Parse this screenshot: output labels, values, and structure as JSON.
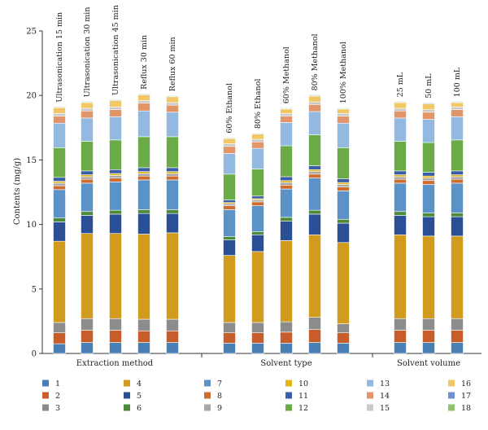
{
  "chart_data": {
    "type": "bar",
    "stacked": true,
    "ylabel": "Contents (mg/g)",
    "ylim": [
      0,
      25
    ],
    "yticks": [
      0,
      5,
      10,
      15,
      20,
      25
    ],
    "grid": false,
    "legend_position": "bottom",
    "groups": [
      {
        "name": "Extraction method",
        "categories": [
          "Ultrasonication 15 min",
          "Ultrasonication 30 min",
          "Ultrasonication 45 min",
          "Reflux 30 min",
          "Reflux 60 min"
        ]
      },
      {
        "name": "Solvent type",
        "categories": [
          "60% Ethanol",
          "80% Ethanol",
          "60% Methanol",
          "80% Methanol",
          "100% Methanol"
        ]
      },
      {
        "name": "Solvent volume",
        "categories": [
          "25 mL",
          "50 mL",
          "100 mL"
        ]
      }
    ],
    "series": [
      {
        "name": "1",
        "color": "#4a7fb5",
        "values": [
          0.75,
          0.85,
          0.85,
          0.85,
          0.85,
          0.8,
          0.8,
          0.8,
          0.85,
          0.8,
          0.85,
          0.85,
          0.85
        ]
      },
      {
        "name": "2",
        "color": "#c65d2a",
        "values": [
          0.85,
          0.95,
          0.95,
          0.9,
          0.9,
          0.8,
          0.8,
          0.85,
          1.0,
          0.8,
          0.95,
          0.95,
          0.95
        ]
      },
      {
        "name": "3",
        "color": "#8c8c8c",
        "values": [
          0.8,
          0.9,
          0.9,
          0.9,
          0.9,
          0.8,
          0.8,
          0.8,
          0.95,
          0.7,
          0.9,
          0.9,
          0.9
        ]
      },
      {
        "name": "4",
        "color": "#d19b1e",
        "values": [
          6.3,
          6.6,
          6.6,
          6.6,
          6.7,
          5.2,
          5.5,
          6.3,
          6.4,
          6.3,
          6.5,
          6.4,
          6.4
        ]
      },
      {
        "name": "5",
        "color": "#2b4f94",
        "values": [
          1.5,
          1.4,
          1.5,
          1.6,
          1.5,
          1.2,
          1.3,
          1.5,
          1.6,
          1.5,
          1.5,
          1.5,
          1.5
        ]
      },
      {
        "name": "6",
        "color": "#4e8a3a",
        "values": [
          0.3,
          0.3,
          0.3,
          0.3,
          0.3,
          0.25,
          0.25,
          0.3,
          0.3,
          0.3,
          0.3,
          0.3,
          0.3
        ]
      },
      {
        "name": "7",
        "color": "#5b93c9",
        "values": [
          2.2,
          2.2,
          2.2,
          2.3,
          2.3,
          2.1,
          2.0,
          2.2,
          2.5,
          2.2,
          2.2,
          2.2,
          2.3
        ]
      },
      {
        "name": "8",
        "color": "#cf6c30",
        "values": [
          0.3,
          0.3,
          0.3,
          0.3,
          0.3,
          0.3,
          0.3,
          0.3,
          0.3,
          0.3,
          0.3,
          0.3,
          0.3
        ]
      },
      {
        "name": "9",
        "color": "#a8a8a8",
        "values": [
          0.2,
          0.2,
          0.2,
          0.2,
          0.2,
          0.15,
          0.15,
          0.2,
          0.2,
          0.2,
          0.2,
          0.2,
          0.2
        ]
      },
      {
        "name": "10",
        "color": "#e2b61b",
        "values": [
          0.15,
          0.15,
          0.15,
          0.15,
          0.15,
          0.1,
          0.1,
          0.15,
          0.15,
          0.15,
          0.15,
          0.15,
          0.15
        ]
      },
      {
        "name": "11",
        "color": "#3a5ea6",
        "values": [
          0.3,
          0.3,
          0.3,
          0.3,
          0.3,
          0.2,
          0.2,
          0.3,
          0.3,
          0.3,
          0.3,
          0.3,
          0.3
        ]
      },
      {
        "name": "12",
        "color": "#6aaa47",
        "values": [
          2.3,
          2.3,
          2.3,
          2.4,
          2.4,
          2.0,
          2.1,
          2.4,
          2.4,
          2.4,
          2.3,
          2.3,
          2.4
        ]
      },
      {
        "name": "13",
        "color": "#93b9e1",
        "values": [
          1.9,
          1.8,
          1.8,
          2.0,
          1.9,
          1.6,
          1.6,
          1.8,
          1.8,
          1.9,
          1.8,
          1.8,
          1.8
        ]
      },
      {
        "name": "14",
        "color": "#e3956a",
        "values": [
          0.55,
          0.55,
          0.55,
          0.6,
          0.55,
          0.55,
          0.5,
          0.5,
          0.55,
          0.55,
          0.55,
          0.55,
          0.55
        ]
      },
      {
        "name": "15",
        "color": "#c9c9c9",
        "values": [
          0.2,
          0.2,
          0.2,
          0.2,
          0.2,
          0.2,
          0.2,
          0.2,
          0.2,
          0.2,
          0.2,
          0.2,
          0.2
        ]
      },
      {
        "name": "16",
        "color": "#f2c766",
        "values": [
          0.45,
          0.45,
          0.5,
          0.45,
          0.45,
          0.4,
          0.4,
          0.35,
          0.45,
          0.35,
          0.45,
          0.45,
          0.35
        ]
      },
      {
        "name": "17",
        "color": "#6f8fcf",
        "values": [
          0.05,
          0.05,
          0.05,
          0.05,
          0.05,
          0.05,
          0.05,
          0.05,
          0.05,
          0.05,
          0.05,
          0.05,
          0.05
        ]
      },
      {
        "name": "18",
        "color": "#8fc26a",
        "values": [
          0.05,
          0.05,
          0.05,
          0.05,
          0.05,
          0.05,
          0.05,
          0.05,
          0.05,
          0.05,
          0.05,
          0.05,
          0.05
        ]
      }
    ]
  }
}
